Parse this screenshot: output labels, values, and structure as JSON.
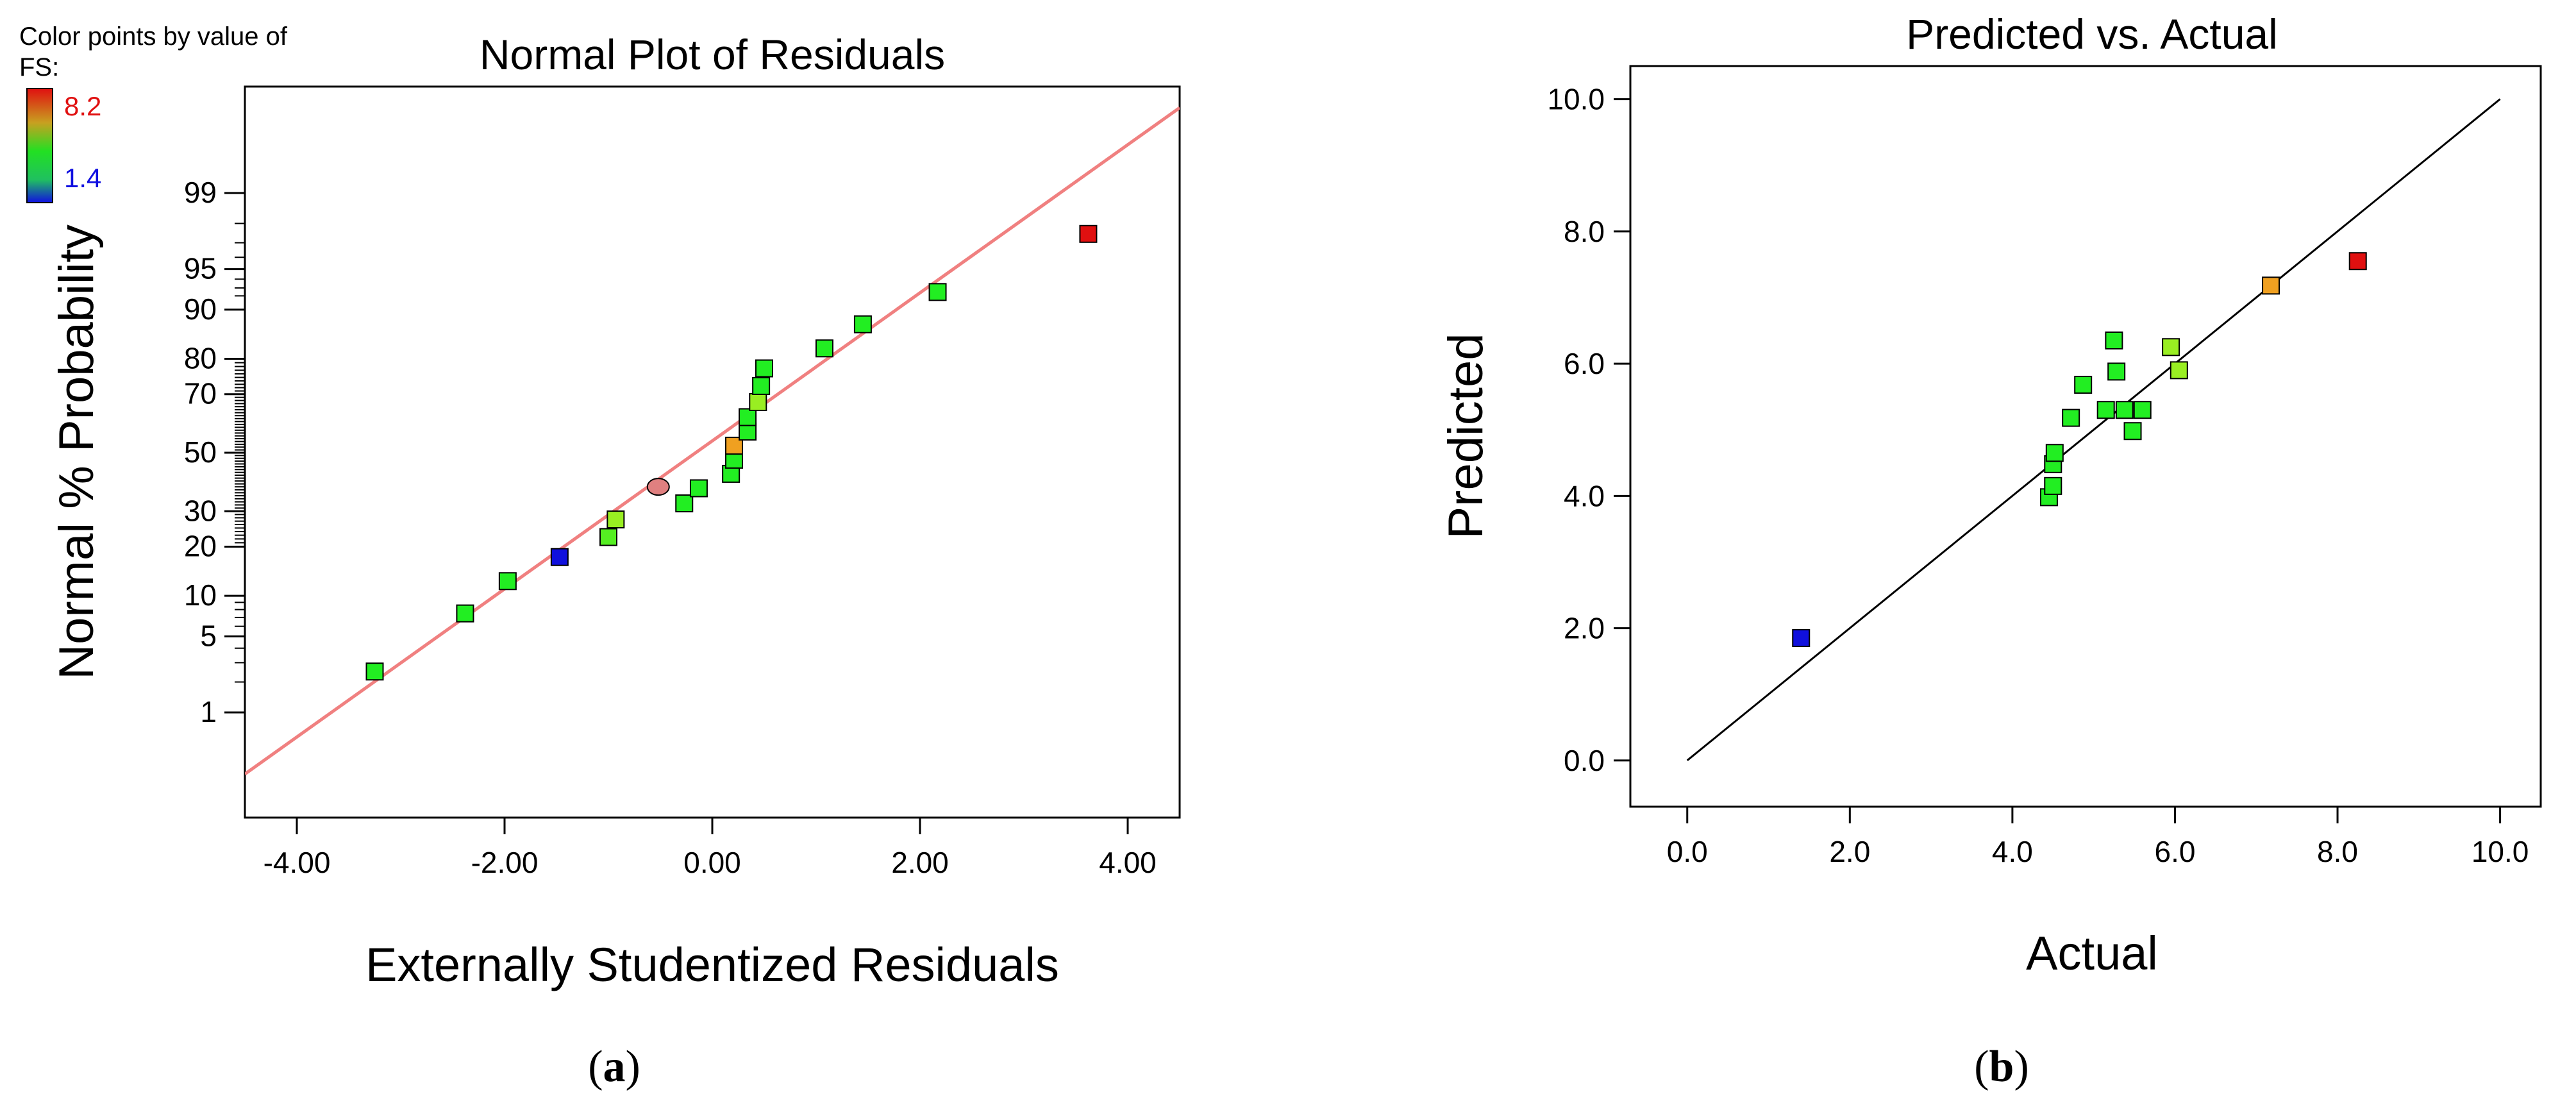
{
  "figure": {
    "caption_a": "(a)",
    "caption_b": "(b)",
    "caption_a_open": "(",
    "caption_a_letter": "a",
    "caption_a_close": ")",
    "caption_b_open": "(",
    "caption_b_letter": "b",
    "caption_b_close": ")"
  },
  "legend": {
    "line1": "Color points by value of",
    "line2": "FS:",
    "max_label": "8.2",
    "min_label": "1.4",
    "max_color": "#e01010",
    "min_color": "#1010e0"
  },
  "colors": {
    "fit_line_a": "#f08080",
    "fit_line_b": "#000000",
    "point_green": "#22ee22",
    "point_lime": "#99ee22",
    "point_orange": "#f0a020",
    "point_red": "#e01010",
    "point_blue": "#1010dd",
    "marker_circle": "#e08080"
  },
  "chart_data": [
    {
      "type": "scatter",
      "title": "Normal Plot of Residuals",
      "xlabel": "Externally Studentized Residuals",
      "ylabel": "Normal % Probability",
      "xlim": [
        -4.5,
        4.5
      ],
      "x_ticks": [
        "-4.00",
        "-2.00",
        "0.00",
        "2.00",
        "4.00"
      ],
      "x_tick_values": [
        -4,
        -2,
        0,
        2,
        4
      ],
      "y_scale": "normal-probability",
      "y_ticks": [
        "1",
        "5",
        "10",
        "20",
        "30",
        "50",
        "70",
        "80",
        "90",
        "95",
        "99"
      ],
      "y_tick_values": [
        1,
        5,
        10,
        20,
        30,
        50,
        70,
        80,
        90,
        95,
        99
      ],
      "fit_line": [
        [
          -4.5,
          0.2
        ],
        [
          4.5,
          99.9
        ]
      ],
      "highlight_point": {
        "x": -0.52,
        "y": 38,
        "shape": "circle",
        "color_key": "marker_circle"
      },
      "points": [
        {
          "x": -3.25,
          "y": 2.5,
          "color": "#22ee22"
        },
        {
          "x": -2.38,
          "y": 7.5,
          "color": "#22ee22"
        },
        {
          "x": -1.97,
          "y": 12.5,
          "color": "#22ee22"
        },
        {
          "x": -1.47,
          "y": 17.5,
          "color": "#1010dd"
        },
        {
          "x": -1.0,
          "y": 22.5,
          "color": "#55ee22"
        },
        {
          "x": -0.93,
          "y": 27.5,
          "color": "#99ee22"
        },
        {
          "x": -0.27,
          "y": 32.5,
          "color": "#22ee22"
        },
        {
          "x": -0.13,
          "y": 37.5,
          "color": "#22ee22"
        },
        {
          "x": 0.18,
          "y": 42.5,
          "color": "#22ee22"
        },
        {
          "x": 0.21,
          "y": 47.5,
          "color": "#22ee22"
        },
        {
          "x": 0.21,
          "y": 52.5,
          "color": "#f0a020"
        },
        {
          "x": 0.34,
          "y": 57.5,
          "color": "#22ee22"
        },
        {
          "x": 0.34,
          "y": 62.5,
          "color": "#22ee22"
        },
        {
          "x": 0.44,
          "y": 67.5,
          "color": "#99ee22"
        },
        {
          "x": 0.47,
          "y": 72.5,
          "color": "#22ee22"
        },
        {
          "x": 0.5,
          "y": 77.5,
          "color": "#22ee22"
        },
        {
          "x": 1.08,
          "y": 82.5,
          "color": "#22ee22"
        },
        {
          "x": 1.45,
          "y": 87.5,
          "color": "#22ee22"
        },
        {
          "x": 2.17,
          "y": 92.5,
          "color": "#22ee22"
        },
        {
          "x": 3.62,
          "y": 97.5,
          "color": "#e01010"
        }
      ]
    },
    {
      "type": "scatter",
      "title": "Predicted vs. Actual",
      "xlabel": "Actual",
      "ylabel": "Predicted",
      "xlim": [
        -0.7,
        10.5
      ],
      "ylim": [
        -0.7,
        10.5
      ],
      "x_ticks": [
        "0.0",
        "2.0",
        "4.0",
        "6.0",
        "8.0",
        "10.0"
      ],
      "x_tick_values": [
        0,
        2,
        4,
        6,
        8,
        10
      ],
      "y_ticks": [
        "0.0",
        "2.0",
        "4.0",
        "6.0",
        "8.0",
        "10.0"
      ],
      "y_tick_values": [
        0,
        2,
        4,
        6,
        8,
        10
      ],
      "fit_line": [
        [
          0,
          0
        ],
        [
          10,
          10
        ]
      ],
      "points": [
        {
          "x": 1.4,
          "y": 1.85,
          "color": "#1010dd"
        },
        {
          "x": 4.45,
          "y": 3.98,
          "color": "#22ee22"
        },
        {
          "x": 4.5,
          "y": 4.15,
          "color": "#22ee22"
        },
        {
          "x": 4.5,
          "y": 4.48,
          "color": "#22ee22"
        },
        {
          "x": 4.52,
          "y": 4.65,
          "color": "#22ee22"
        },
        {
          "x": 4.72,
          "y": 5.18,
          "color": "#22ee22"
        },
        {
          "x": 4.87,
          "y": 5.68,
          "color": "#22ee22"
        },
        {
          "x": 5.15,
          "y": 5.3,
          "color": "#22ee22"
        },
        {
          "x": 5.25,
          "y": 6.35,
          "color": "#22ee22"
        },
        {
          "x": 5.28,
          "y": 5.88,
          "color": "#22ee22"
        },
        {
          "x": 5.38,
          "y": 5.3,
          "color": "#22ee22"
        },
        {
          "x": 5.48,
          "y": 4.98,
          "color": "#22ee22"
        },
        {
          "x": 5.6,
          "y": 5.3,
          "color": "#22ee22"
        },
        {
          "x": 5.95,
          "y": 6.25,
          "color": "#99ee22"
        },
        {
          "x": 6.05,
          "y": 5.9,
          "color": "#99ee22"
        },
        {
          "x": 7.18,
          "y": 7.18,
          "color": "#f0a020"
        },
        {
          "x": 8.25,
          "y": 7.55,
          "color": "#e01010"
        }
      ]
    }
  ]
}
